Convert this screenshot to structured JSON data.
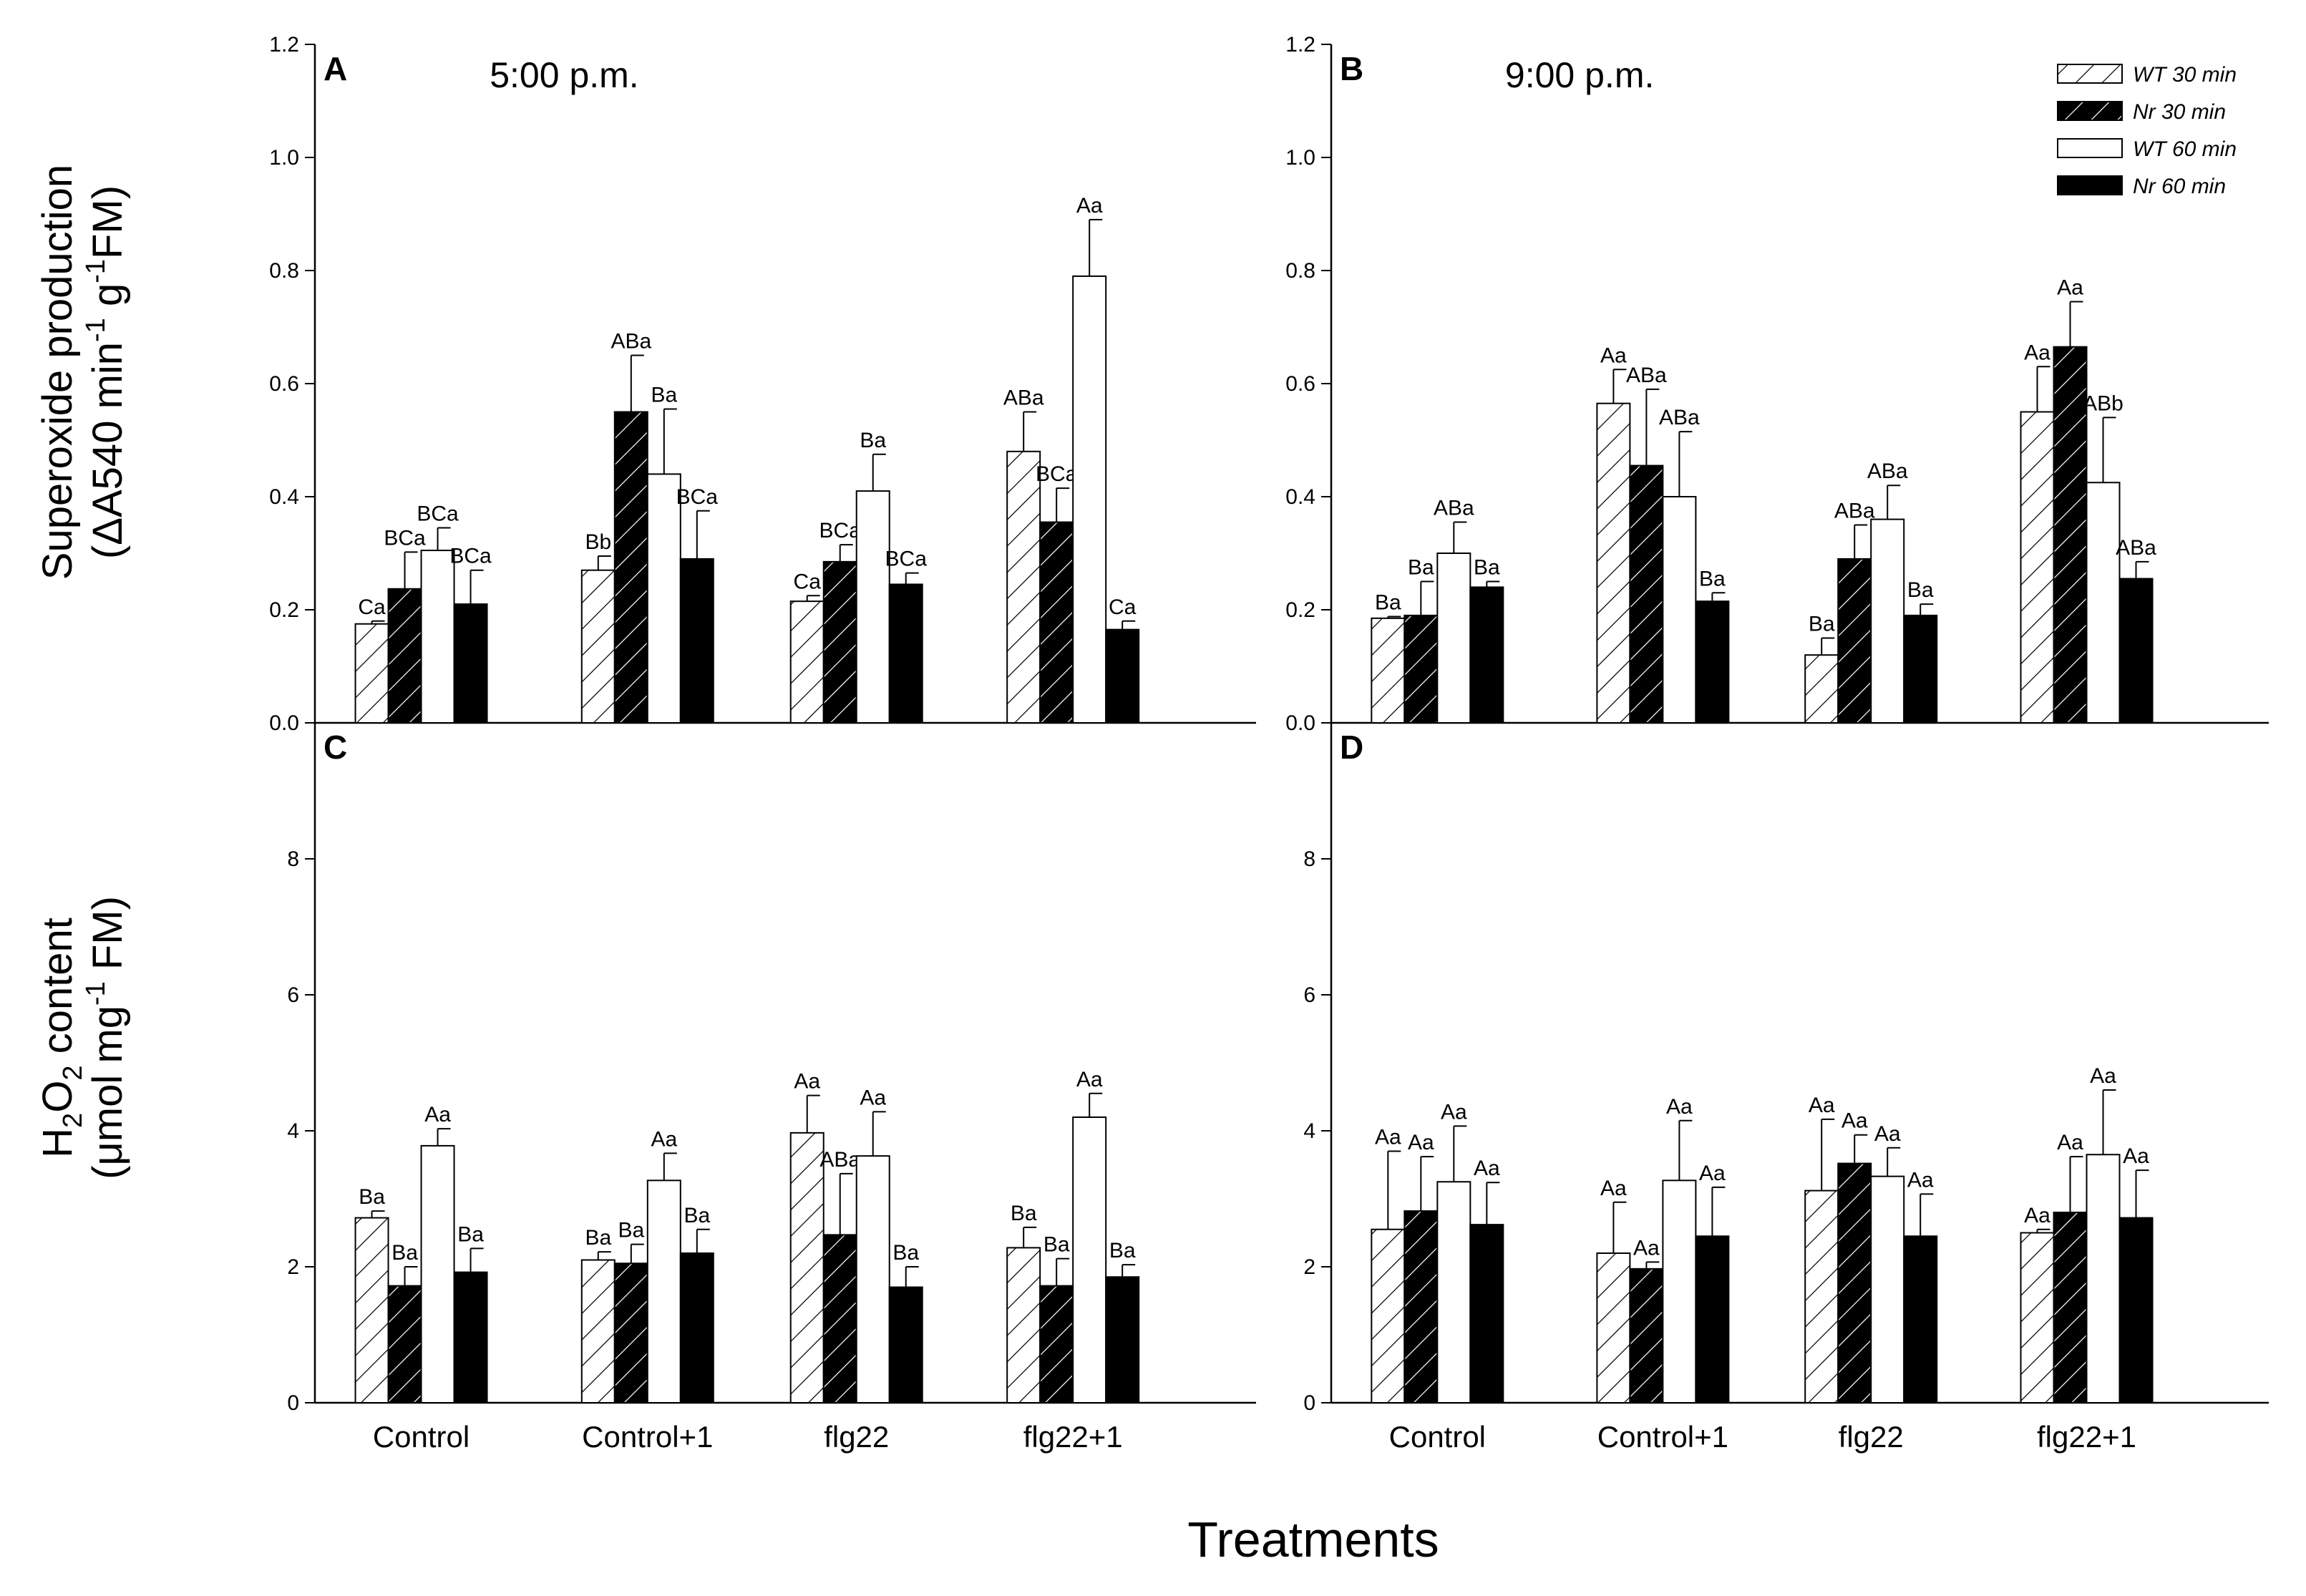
{
  "x_axis_title": "Treatments",
  "y_titles": {
    "top": {
      "line1": "Superoxide production",
      "line2_pre": "(ΔA540 min",
      "sup1": "-1",
      "line2_mid": " g",
      "sup2": "-1",
      "line2_post": "FM)"
    },
    "bottom": {
      "line1_pre": "H",
      "sub": "2",
      "line1_mid": "O",
      "sub2": "2",
      "line1_post": " content",
      "line2_pre": "(μmol mg",
      "sup": "-1",
      "line2_post": " FM)"
    }
  },
  "legend": [
    {
      "label": "WT 30 min",
      "style": "hatched"
    },
    {
      "label": "Nr 30 min",
      "style": "black-hatched"
    },
    {
      "label": "WT 60 min",
      "style": "white"
    },
    {
      "label": "Nr 60 min",
      "style": "black"
    }
  ],
  "colors": {
    "bar_fill_black": "#000000",
    "bar_fill_white": "#ffffff",
    "axis": "#000000"
  },
  "chart_data": [
    {
      "panel": "A",
      "title": "5:00 p.m.",
      "type": "bar",
      "categories": [
        "Control",
        "Control+1",
        "flg22",
        "flg22+1"
      ],
      "ylim": [
        0,
        1.2
      ],
      "yticks": [
        "0.0",
        "0.2",
        "0.4",
        "0.6",
        "0.8",
        "1.0",
        "1.2"
      ],
      "series": [
        {
          "name": "WT 30 min",
          "values": [
            0.175,
            0.27,
            0.215,
            0.48
          ],
          "errors": [
            0.005,
            0.025,
            0.01,
            0.07
          ],
          "labels": [
            "Ca",
            "Bb",
            "Ca",
            "ABa"
          ]
        },
        {
          "name": "Nr 30 min",
          "values": [
            0.237,
            0.55,
            0.285,
            0.355
          ],
          "errors": [
            0.065,
            0.1,
            0.03,
            0.06
          ],
          "labels": [
            "BCa",
            "ABa",
            "BCa",
            "BCa"
          ]
        },
        {
          "name": "WT 60 min",
          "values": [
            0.305,
            0.44,
            0.41,
            0.79
          ],
          "errors": [
            0.04,
            0.115,
            0.065,
            0.1
          ],
          "labels": [
            "BCa",
            "Ba",
            "Ba",
            "Aa"
          ]
        },
        {
          "name": "Nr 60 min",
          "values": [
            0.21,
            0.29,
            0.245,
            0.165
          ],
          "errors": [
            0.06,
            0.085,
            0.02,
            0.015
          ],
          "labels": [
            "BCa",
            "BCa",
            "BCa",
            "Ca"
          ]
        }
      ]
    },
    {
      "panel": "B",
      "title": "9:00 p.m.",
      "type": "bar",
      "categories": [
        "Control",
        "Control+1",
        "flg22",
        "flg22+1"
      ],
      "ylim": [
        0,
        1.2
      ],
      "yticks": [
        "0.0",
        "0.2",
        "0.4",
        "0.6",
        "0.8",
        "1.0",
        "1.2"
      ],
      "series": [
        {
          "name": "WT 30 min",
          "values": [
            0.185,
            0.565,
            0.12,
            0.55
          ],
          "errors": [
            0.003,
            0.06,
            0.03,
            0.08
          ],
          "labels": [
            "Ba",
            "Aa",
            "Ba",
            "Aa"
          ]
        },
        {
          "name": "Nr 30 min",
          "values": [
            0.19,
            0.455,
            0.29,
            0.665
          ],
          "errors": [
            0.06,
            0.135,
            0.06,
            0.08
          ],
          "labels": [
            "Ba",
            "ABa",
            "ABa",
            "Aa"
          ]
        },
        {
          "name": "WT 60 min",
          "values": [
            0.3,
            0.4,
            0.36,
            0.425
          ],
          "errors": [
            0.055,
            0.115,
            0.06,
            0.115
          ],
          "labels": [
            "ABa",
            "ABa",
            "ABa",
            "ABb"
          ]
        },
        {
          "name": "Nr 60 min",
          "values": [
            0.24,
            0.215,
            0.19,
            0.255
          ],
          "errors": [
            0.01,
            0.015,
            0.02,
            0.03
          ],
          "labels": [
            "Ba",
            "Ba",
            "Ba",
            "ABa"
          ]
        }
      ]
    },
    {
      "panel": "C",
      "title": "",
      "type": "bar",
      "categories": [
        "Control",
        "Control+1",
        "flg22",
        "flg22+1"
      ],
      "ylim": [
        0,
        10
      ],
      "yticks": [
        "0",
        "2",
        "4",
        "6",
        "8"
      ],
      "series": [
        {
          "name": "WT 30 min",
          "values": [
            2.72,
            2.1,
            3.97,
            2.28
          ],
          "errors": [
            0.1,
            0.12,
            0.55,
            0.3
          ],
          "labels": [
            "Ba",
            "Ba",
            "Aa",
            "Ba"
          ]
        },
        {
          "name": "Nr 30 min",
          "values": [
            1.72,
            2.05,
            2.47,
            1.72
          ],
          "errors": [
            0.28,
            0.28,
            0.9,
            0.4
          ],
          "labels": [
            "Ba",
            "Ba",
            "ABa",
            "Ba"
          ]
        },
        {
          "name": "WT 60 min",
          "values": [
            3.78,
            3.27,
            3.63,
            4.2
          ],
          "errors": [
            0.25,
            0.4,
            0.65,
            0.35
          ],
          "labels": [
            "Aa",
            "Aa",
            "Aa",
            "Aa"
          ]
        },
        {
          "name": "Nr 60 min",
          "values": [
            1.92,
            2.2,
            1.7,
            1.85
          ],
          "errors": [
            0.35,
            0.35,
            0.3,
            0.18
          ],
          "labels": [
            "Ba",
            "Ba",
            "Ba",
            "Ba"
          ]
        }
      ]
    },
    {
      "panel": "D",
      "title": "",
      "type": "bar",
      "categories": [
        "Control",
        "Control+1",
        "flg22",
        "flg22+1"
      ],
      "ylim": [
        0,
        10
      ],
      "yticks": [
        "0",
        "2",
        "4",
        "6",
        "8"
      ],
      "series": [
        {
          "name": "WT 30 min",
          "values": [
            2.55,
            2.2,
            3.12,
            2.5
          ],
          "errors": [
            1.15,
            0.75,
            1.05,
            0.05
          ],
          "labels": [
            "Aa",
            "Aa",
            "Aa",
            "Aa"
          ]
        },
        {
          "name": "Nr 30 min",
          "values": [
            2.82,
            1.97,
            3.52,
            2.8
          ],
          "errors": [
            0.8,
            0.1,
            0.42,
            0.82
          ],
          "labels": [
            "Aa",
            "Aa",
            "Aa",
            "Aa"
          ]
        },
        {
          "name": "WT 60 min",
          "values": [
            3.25,
            3.27,
            3.33,
            3.65
          ],
          "errors": [
            0.82,
            0.88,
            0.42,
            0.95
          ],
          "labels": [
            "Aa",
            "Aa",
            "Aa",
            "Aa"
          ]
        },
        {
          "name": "Nr 60 min",
          "values": [
            2.62,
            2.45,
            2.45,
            2.72
          ],
          "errors": [
            0.62,
            0.72,
            0.62,
            0.7
          ],
          "labels": [
            "Aa",
            "Aa",
            "Aa",
            "Aa"
          ]
        }
      ]
    }
  ]
}
